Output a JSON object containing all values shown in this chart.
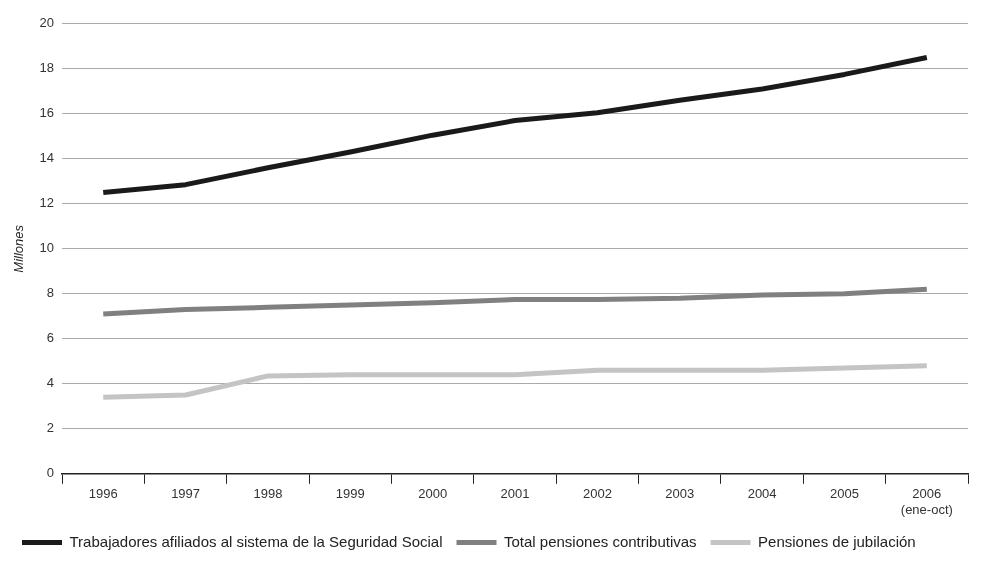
{
  "chart_data": {
    "type": "line",
    "ylabel": "Millones",
    "categories": [
      "1996",
      "1997",
      "1998",
      "1999",
      "2000",
      "2001",
      "2002",
      "2003",
      "2004",
      "2005",
      "2006 (ene-oct)"
    ],
    "series": [
      {
        "name": "Trabajadores afiliados al sistema de la Seguridad Social",
        "color": "#1a1a1a",
        "values": [
          12.5,
          12.85,
          13.6,
          14.3,
          15.05,
          15.7,
          16.05,
          16.6,
          17.1,
          17.75,
          18.5
        ]
      },
      {
        "name": "Total pensiones contributivas",
        "color": "#808080",
        "values": [
          7.1,
          7.3,
          7.4,
          7.5,
          7.6,
          7.75,
          7.75,
          7.8,
          7.95,
          8.0,
          8.2
        ]
      },
      {
        "name": "Pensiones de jubilación",
        "color": "#c4c4c4",
        "values": [
          3.4,
          3.5,
          4.35,
          4.4,
          4.4,
          4.4,
          4.6,
          4.6,
          4.6,
          4.7,
          4.8
        ]
      }
    ],
    "ylim": [
      0,
      20
    ],
    "yticks": [
      0,
      2,
      4,
      6,
      8,
      10,
      12,
      14,
      16,
      18,
      20
    ],
    "grid": "y",
    "legend": "bottom",
    "marker": "none",
    "line_style": "solid"
  }
}
